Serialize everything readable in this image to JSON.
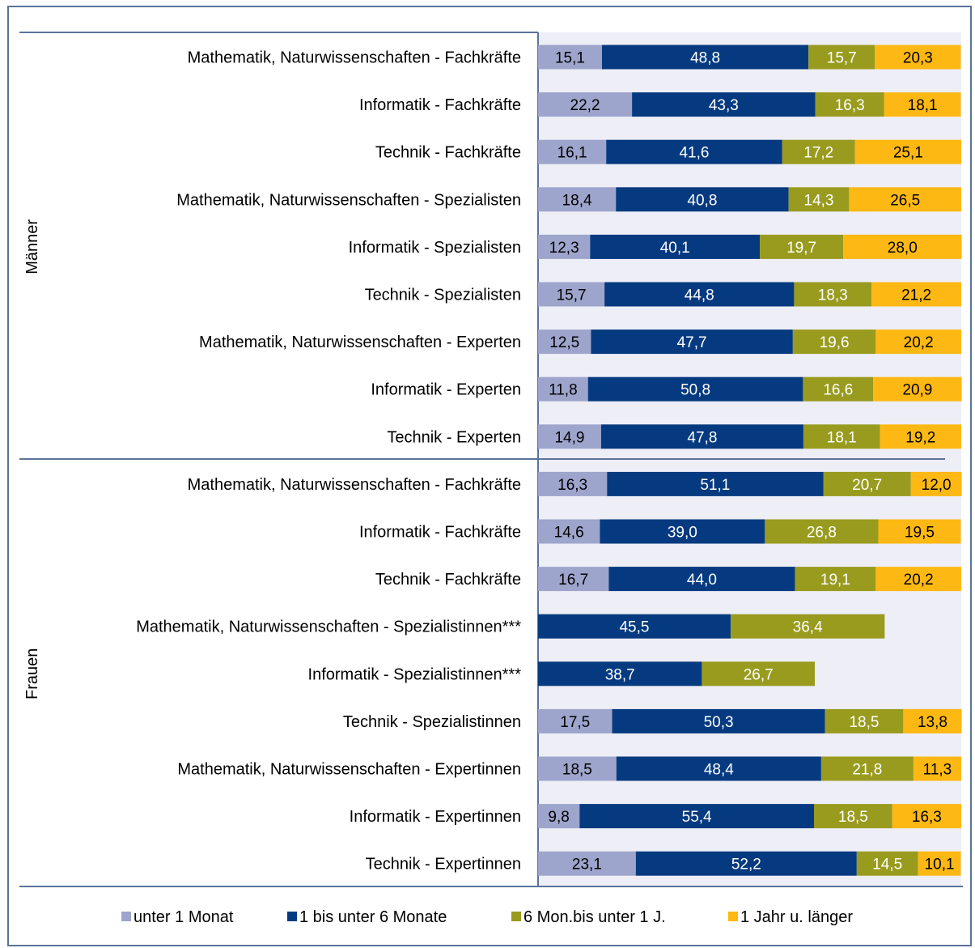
{
  "chart_data": {
    "type": "bar",
    "orientation": "horizontal",
    "stacked": true,
    "groups": [
      {
        "name": "Männer",
        "start": 0,
        "end": 9
      },
      {
        "name": "Frauen",
        "start": 9,
        "end": 18
      }
    ],
    "categories": [
      "Mathematik, Naturwissenschaften - Fachkräfte",
      "Informatik - Fachkräfte",
      "Technik - Fachkräfte",
      "Mathematik, Naturwissenschaften - Spezialisten",
      "Informatik - Spezialisten",
      "Technik - Spezialisten",
      "Mathematik, Naturwissenschaften - Experten",
      "Informatik - Experten",
      "Technik - Experten",
      "Mathematik, Naturwissenschaften - Fachkräfte",
      "Informatik - Fachkräfte",
      "Technik - Fachkräfte",
      "Mathematik, Naturwissenschaften - Spezialistinnen***",
      "Informatik - Spezialistinnen***",
      "Technik - Spezialistinnen",
      "Mathematik, Naturwissenschaften - Expertinnen",
      "Informatik - Expertinnen",
      "Technik - Expertinnen"
    ],
    "series": [
      {
        "name": "unter 1 Monat",
        "color": "#9da5cc",
        "label_color": "#000000",
        "values": [
          15.1,
          22.2,
          16.1,
          18.4,
          12.3,
          15.7,
          12.5,
          11.8,
          14.9,
          16.3,
          14.6,
          16.7,
          null,
          null,
          17.5,
          18.5,
          9.8,
          23.1
        ],
        "labels": [
          "15,1",
          "22,2",
          "16,1",
          "18,4",
          "12,3",
          "15,7",
          "12,5",
          "11,8",
          "14,9",
          "16,3",
          "14,6",
          "16,7",
          "",
          "",
          "17,5",
          "18,5",
          "9,8",
          "23,1"
        ]
      },
      {
        "name": "1 bis unter 6 Monate",
        "color": "#063a80",
        "label_color": "#ffffff",
        "values": [
          48.8,
          43.3,
          41.6,
          40.8,
          40.1,
          44.8,
          47.7,
          50.8,
          47.8,
          51.1,
          39.0,
          44.0,
          45.5,
          38.7,
          50.3,
          48.4,
          55.4,
          52.2
        ],
        "labels": [
          "48,8",
          "43,3",
          "41,6",
          "40,8",
          "40,1",
          "44,8",
          "47,7",
          "50,8",
          "47,8",
          "51,1",
          "39,0",
          "44,0",
          "45,5",
          "38,7",
          "50,3",
          "48,4",
          "55,4",
          "52,2"
        ]
      },
      {
        "name": "6 Mon.bis unter 1 J.",
        "color": "#999b1f",
        "label_color": "#ffffff",
        "values": [
          15.7,
          16.3,
          17.2,
          14.3,
          19.7,
          18.3,
          19.6,
          16.6,
          18.1,
          20.7,
          26.8,
          19.1,
          36.4,
          26.7,
          18.5,
          21.8,
          18.5,
          14.5
        ],
        "labels": [
          "15,7",
          "16,3",
          "17,2",
          "14,3",
          "19,7",
          "18,3",
          "19,6",
          "16,6",
          "18,1",
          "20,7",
          "26,8",
          "19,1",
          "36,4",
          "26,7",
          "18,5",
          "21,8",
          "18,5",
          "14,5"
        ]
      },
      {
        "name": "1 Jahr u. länger",
        "color": "#fdb813",
        "label_color": "#000000",
        "values": [
          20.3,
          18.1,
          25.1,
          26.5,
          28.0,
          21.2,
          20.2,
          20.9,
          19.2,
          12.0,
          19.5,
          20.2,
          null,
          null,
          13.8,
          11.3,
          16.3,
          10.1
        ],
        "labels": [
          "20,3",
          "18,1",
          "25,1",
          "26,5",
          "28,0",
          "21,2",
          "20,2",
          "20,9",
          "19,2",
          "12,0",
          "19,5",
          "20,2",
          "",
          "",
          "13,8",
          "11,3",
          "16,3",
          "10,1"
        ]
      }
    ],
    "xlim": [
      0,
      100
    ],
    "legend_position": "bottom",
    "plot_background": "#eeeef6",
    "frame_color": "#5b7399"
  }
}
